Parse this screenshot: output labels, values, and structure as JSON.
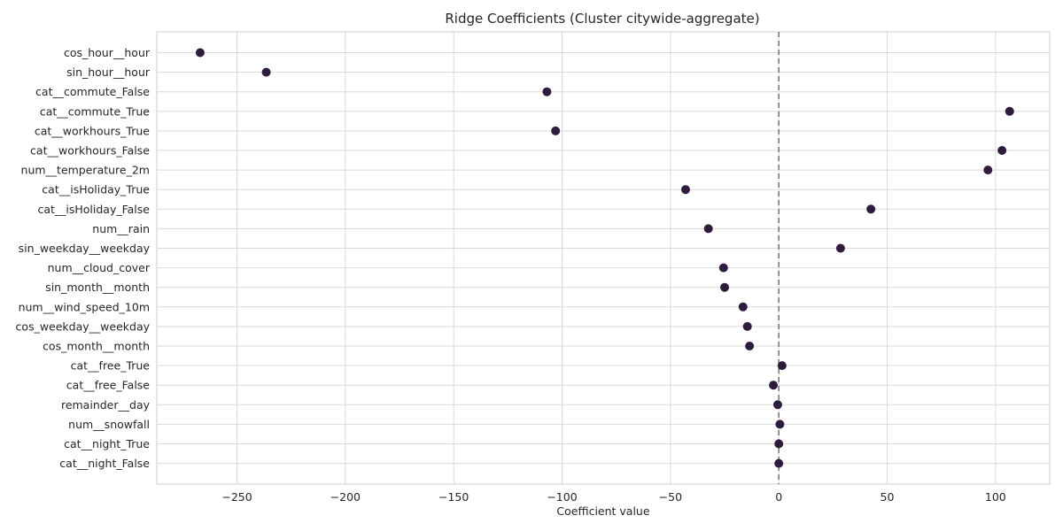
{
  "chart_data": {
    "type": "scatter",
    "title": "Ridge Coefficients (Cluster citywide-aggregate)",
    "xlabel": "Coefficient value",
    "ylabel": "",
    "xlim": [
      -287,
      125
    ],
    "xticks": [
      -250,
      -200,
      -150,
      -100,
      -50,
      0,
      50,
      100
    ],
    "xtick_labels": [
      "−250",
      "−200",
      "−150",
      "−100",
      "−50",
      "0",
      "50",
      "100"
    ],
    "grid": true,
    "reference_line": {
      "x": 0,
      "style": "dashed"
    },
    "marker_color": "#2f1b3d",
    "categories": [
      "cos_hour__hour",
      "sin_hour__hour",
      "cat__commute_False",
      "cat__commute_True",
      "cat__workhours_True",
      "cat__workhours_False",
      "num__temperature_2m",
      "cat__isHoliday_True",
      "cat__isHoliday_False",
      "num__rain",
      "sin_weekday__weekday",
      "num__cloud_cover",
      "sin_month__month",
      "num__wind_speed_10m",
      "cos_weekday__weekday",
      "cos_month__month",
      "cat__free_True",
      "cat__free_False",
      "remainder__day",
      "num__snowfall",
      "cat__night_True",
      "cat__night_False"
    ],
    "values": [
      -267,
      -236.5,
      -107,
      106.5,
      -103,
      103,
      96.5,
      -43,
      42.5,
      -32.5,
      28.5,
      -25.5,
      -25,
      -16.5,
      -14.5,
      -13.5,
      1.5,
      -2.5,
      -0.5,
      0.5,
      0,
      0
    ]
  }
}
